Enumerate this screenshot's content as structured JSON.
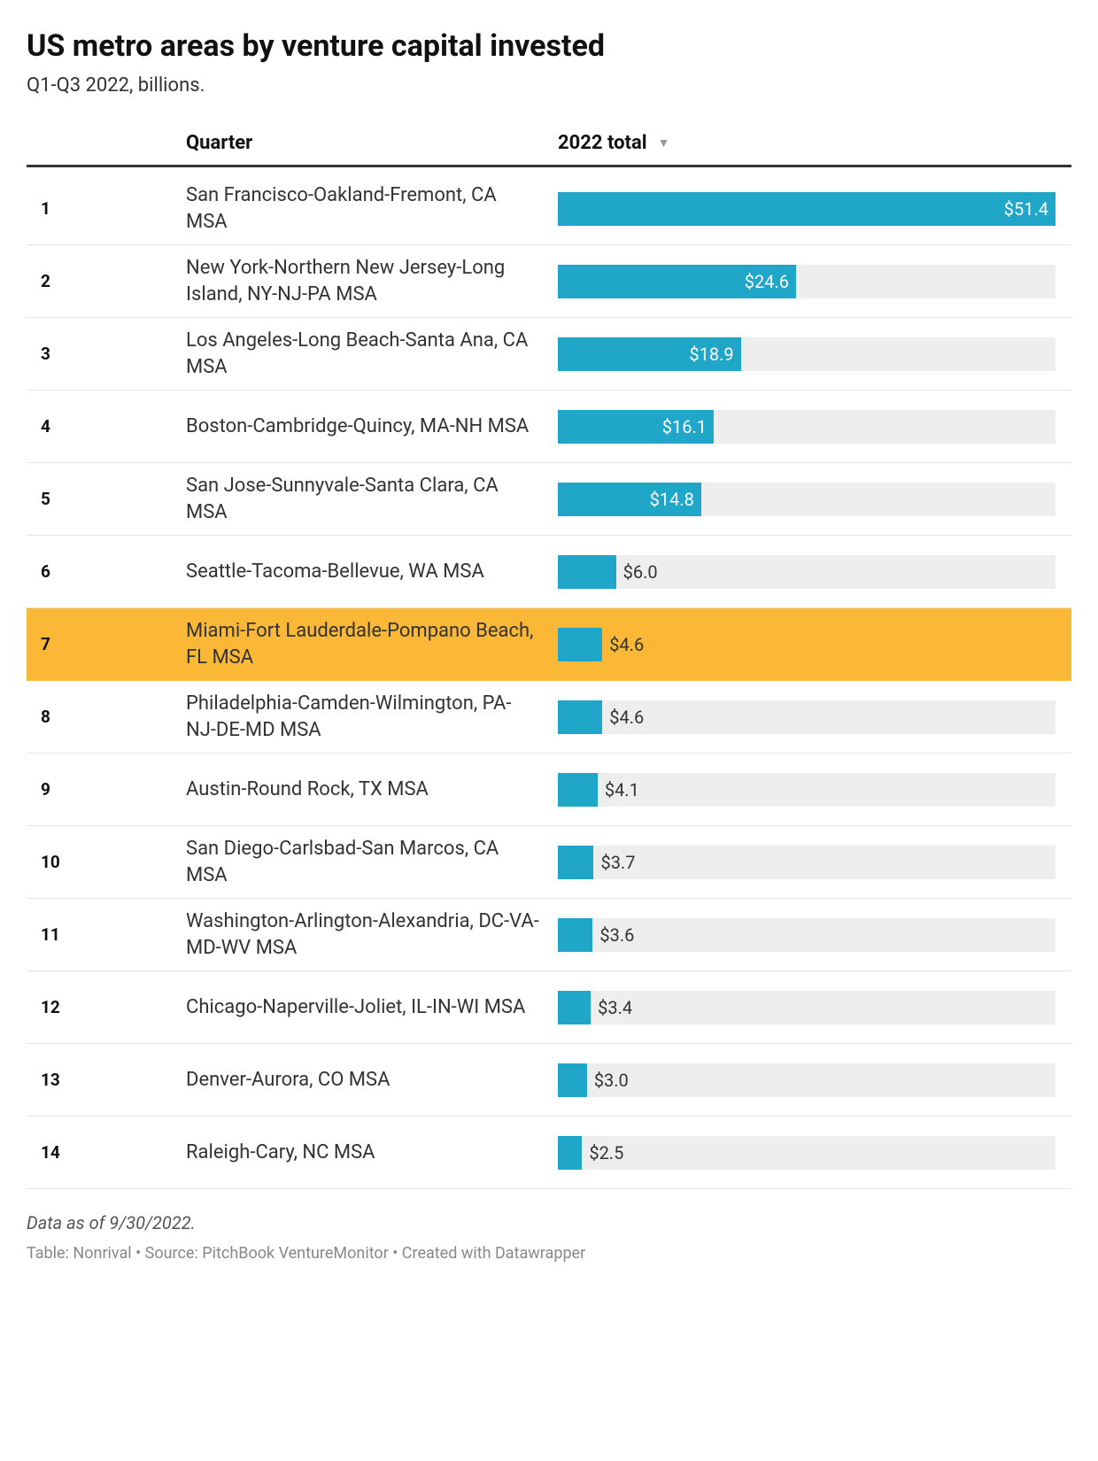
{
  "title": "US metro areas by venture capital invested",
  "subtitle": "Q1-Q3 2022, billions.",
  "columns": {
    "quarter": "Quarter",
    "total": "2022 total"
  },
  "chart": {
    "type": "table-bar",
    "bar_color": "#1fa6c9",
    "bar_track_color": "#eeeeee",
    "highlight_color": "#fbb836",
    "max_value": 51.4,
    "label_inside_color": "#ffffff",
    "label_outside_color": "#333333",
    "label_fontsize": 20,
    "name_fontsize": 22,
    "rank_fontsize": 19,
    "header_fontsize": 22,
    "title_fontsize": 34,
    "subtitle_fontsize": 22,
    "border_color": "#e5e5e5",
    "header_border_color": "#333333"
  },
  "rows": [
    {
      "rank": "1",
      "name": "San Francisco-Oakland-Fremont, CA MSA",
      "value": 51.4,
      "label": "$51.4",
      "label_inside": true,
      "highlighted": false
    },
    {
      "rank": "2",
      "name": "New York-Northern New Jersey-Long Island, NY-NJ-PA MSA",
      "value": 24.6,
      "label": "$24.6",
      "label_inside": true,
      "highlighted": false
    },
    {
      "rank": "3",
      "name": "Los Angeles-Long Beach-Santa Ana, CA MSA",
      "value": 18.9,
      "label": "$18.9",
      "label_inside": true,
      "highlighted": false
    },
    {
      "rank": "4",
      "name": "Boston-Cambridge-Quincy, MA-NH MSA",
      "value": 16.1,
      "label": "$16.1",
      "label_inside": true,
      "highlighted": false
    },
    {
      "rank": "5",
      "name": "San Jose-Sunnyvale-Santa Clara, CA MSA",
      "value": 14.8,
      "label": "$14.8",
      "label_inside": true,
      "highlighted": false
    },
    {
      "rank": "6",
      "name": "Seattle-Tacoma-Bellevue, WA MSA",
      "value": 6.0,
      "label": "$6.0",
      "label_inside": false,
      "highlighted": false
    },
    {
      "rank": "7",
      "name": "Miami-Fort Lauderdale-Pompano Beach, FL MSA",
      "value": 4.6,
      "label": "$4.6",
      "label_inside": false,
      "highlighted": true
    },
    {
      "rank": "8",
      "name": "Philadelphia-Camden-Wilmington, PA-NJ-DE-MD MSA",
      "value": 4.6,
      "label": "$4.6",
      "label_inside": false,
      "highlighted": false
    },
    {
      "rank": "9",
      "name": "Austin-Round Rock, TX MSA",
      "value": 4.1,
      "label": "$4.1",
      "label_inside": false,
      "highlighted": false
    },
    {
      "rank": "10",
      "name": "San Diego-Carlsbad-San Marcos, CA MSA",
      "value": 3.7,
      "label": "$3.7",
      "label_inside": false,
      "highlighted": false
    },
    {
      "rank": "11",
      "name": "Washington-Arlington-Alexandria, DC-VA-MD-WV MSA",
      "value": 3.6,
      "label": "$3.6",
      "label_inside": false,
      "highlighted": false
    },
    {
      "rank": "12",
      "name": "Chicago-Naperville-Joliet, IL-IN-WI MSA",
      "value": 3.4,
      "label": "$3.4",
      "label_inside": false,
      "highlighted": false
    },
    {
      "rank": "13",
      "name": "Denver-Aurora, CO MSA",
      "value": 3.0,
      "label": "$3.0",
      "label_inside": false,
      "highlighted": false
    },
    {
      "rank": "14",
      "name": "Raleigh-Cary, NC MSA",
      "value": 2.5,
      "label": "$2.5",
      "label_inside": false,
      "highlighted": false
    }
  ],
  "footer": {
    "note": "Data as of 9/30/2022.",
    "credit": "Table: Nonrival • Source: PitchBook VentureMonitor • Created with Datawrapper"
  }
}
